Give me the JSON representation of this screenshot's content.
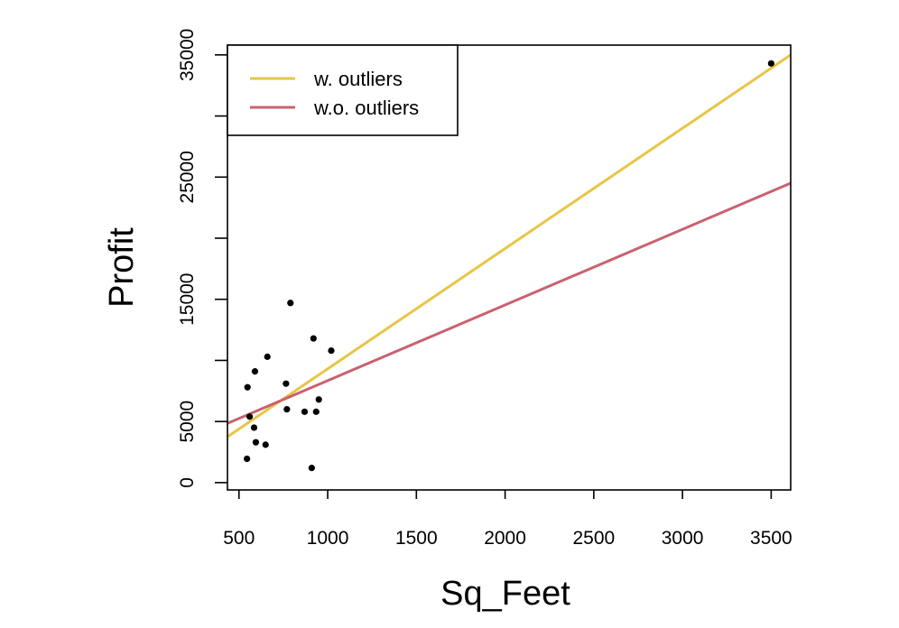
{
  "chart_data": {
    "type": "scatter",
    "xlabel": "Sq_Feet",
    "ylabel": "Profit",
    "xlim": [
      435,
      3610
    ],
    "ylim": [
      -600,
      35800
    ],
    "x_ticks": [
      500,
      1000,
      1500,
      2000,
      2500,
      3000,
      3500
    ],
    "y_ticks": [
      0,
      5000,
      10000,
      15000,
      20000,
      25000,
      30000,
      35000
    ],
    "y_tick_labels": [
      "0",
      "5000",
      "",
      "15000",
      "",
      "25000",
      "",
      "35000"
    ],
    "x_tick_labels": [
      "500",
      "1000",
      "1500",
      "2000",
      "2500",
      "3000",
      "3500"
    ],
    "points": [
      {
        "x": 545,
        "y": 1950
      },
      {
        "x": 548,
        "y": 7800
      },
      {
        "x": 560,
        "y": 5400
      },
      {
        "x": 585,
        "y": 4500
      },
      {
        "x": 590,
        "y": 9100
      },
      {
        "x": 595,
        "y": 3300
      },
      {
        "x": 650,
        "y": 3100
      },
      {
        "x": 660,
        "y": 10300
      },
      {
        "x": 765,
        "y": 8100
      },
      {
        "x": 770,
        "y": 6000
      },
      {
        "x": 790,
        "y": 14700
      },
      {
        "x": 870,
        "y": 5800
      },
      {
        "x": 910,
        "y": 1200
      },
      {
        "x": 920,
        "y": 11800
      },
      {
        "x": 935,
        "y": 5800
      },
      {
        "x": 950,
        "y": 6800
      },
      {
        "x": 1020,
        "y": 10800
      },
      {
        "x": 3500,
        "y": 34300
      }
    ],
    "series": [
      {
        "name": "w. outliers",
        "color": "#E8C547",
        "line": {
          "x": [
            435,
            3610
          ],
          "y": [
            3750,
            35000
          ]
        }
      },
      {
        "name": "w.o. outliers",
        "color": "#C9626F",
        "line": {
          "x": [
            435,
            3610
          ],
          "y": [
            4850,
            24500
          ]
        }
      }
    ],
    "legend_position": "top-left"
  }
}
